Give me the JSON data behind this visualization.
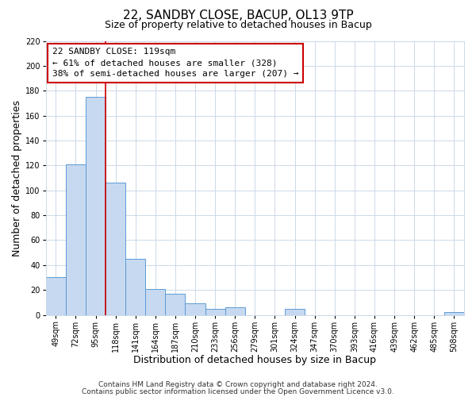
{
  "title": "22, SANDBY CLOSE, BACUP, OL13 9TP",
  "subtitle": "Size of property relative to detached houses in Bacup",
  "xlabel": "Distribution of detached houses by size in Bacup",
  "ylabel": "Number of detached properties",
  "bar_labels": [
    "49sqm",
    "72sqm",
    "95sqm",
    "118sqm",
    "141sqm",
    "164sqm",
    "187sqm",
    "210sqm",
    "233sqm",
    "256sqm",
    "279sqm",
    "301sqm",
    "324sqm",
    "347sqm",
    "370sqm",
    "393sqm",
    "416sqm",
    "439sqm",
    "462sqm",
    "485sqm",
    "508sqm"
  ],
  "bar_values": [
    30,
    121,
    175,
    106,
    45,
    21,
    17,
    9,
    5,
    6,
    0,
    0,
    5,
    0,
    0,
    0,
    0,
    0,
    0,
    0,
    2
  ],
  "bar_color": "#c6d9f0",
  "bar_edge_color": "#5b9bd5",
  "vline_x_index": 3,
  "vline_color": "#cc0000",
  "annotation_line1": "22 SANDBY CLOSE: 119sqm",
  "annotation_line2": "← 61% of detached houses are smaller (328)",
  "annotation_line3": "38% of semi-detached houses are larger (207) →",
  "ylim": [
    0,
    220
  ],
  "yticks": [
    0,
    20,
    40,
    60,
    80,
    100,
    120,
    140,
    160,
    180,
    200,
    220
  ],
  "footer_line1": "Contains HM Land Registry data © Crown copyright and database right 2024.",
  "footer_line2": "Contains public sector information licensed under the Open Government Licence v3.0.",
  "bg_color": "#ffffff",
  "grid_color": "#ccd9e8",
  "title_fontsize": 11,
  "subtitle_fontsize": 9,
  "axis_label_fontsize": 9,
  "tick_fontsize": 7,
  "footer_fontsize": 6.5,
  "ann_fontsize": 8
}
